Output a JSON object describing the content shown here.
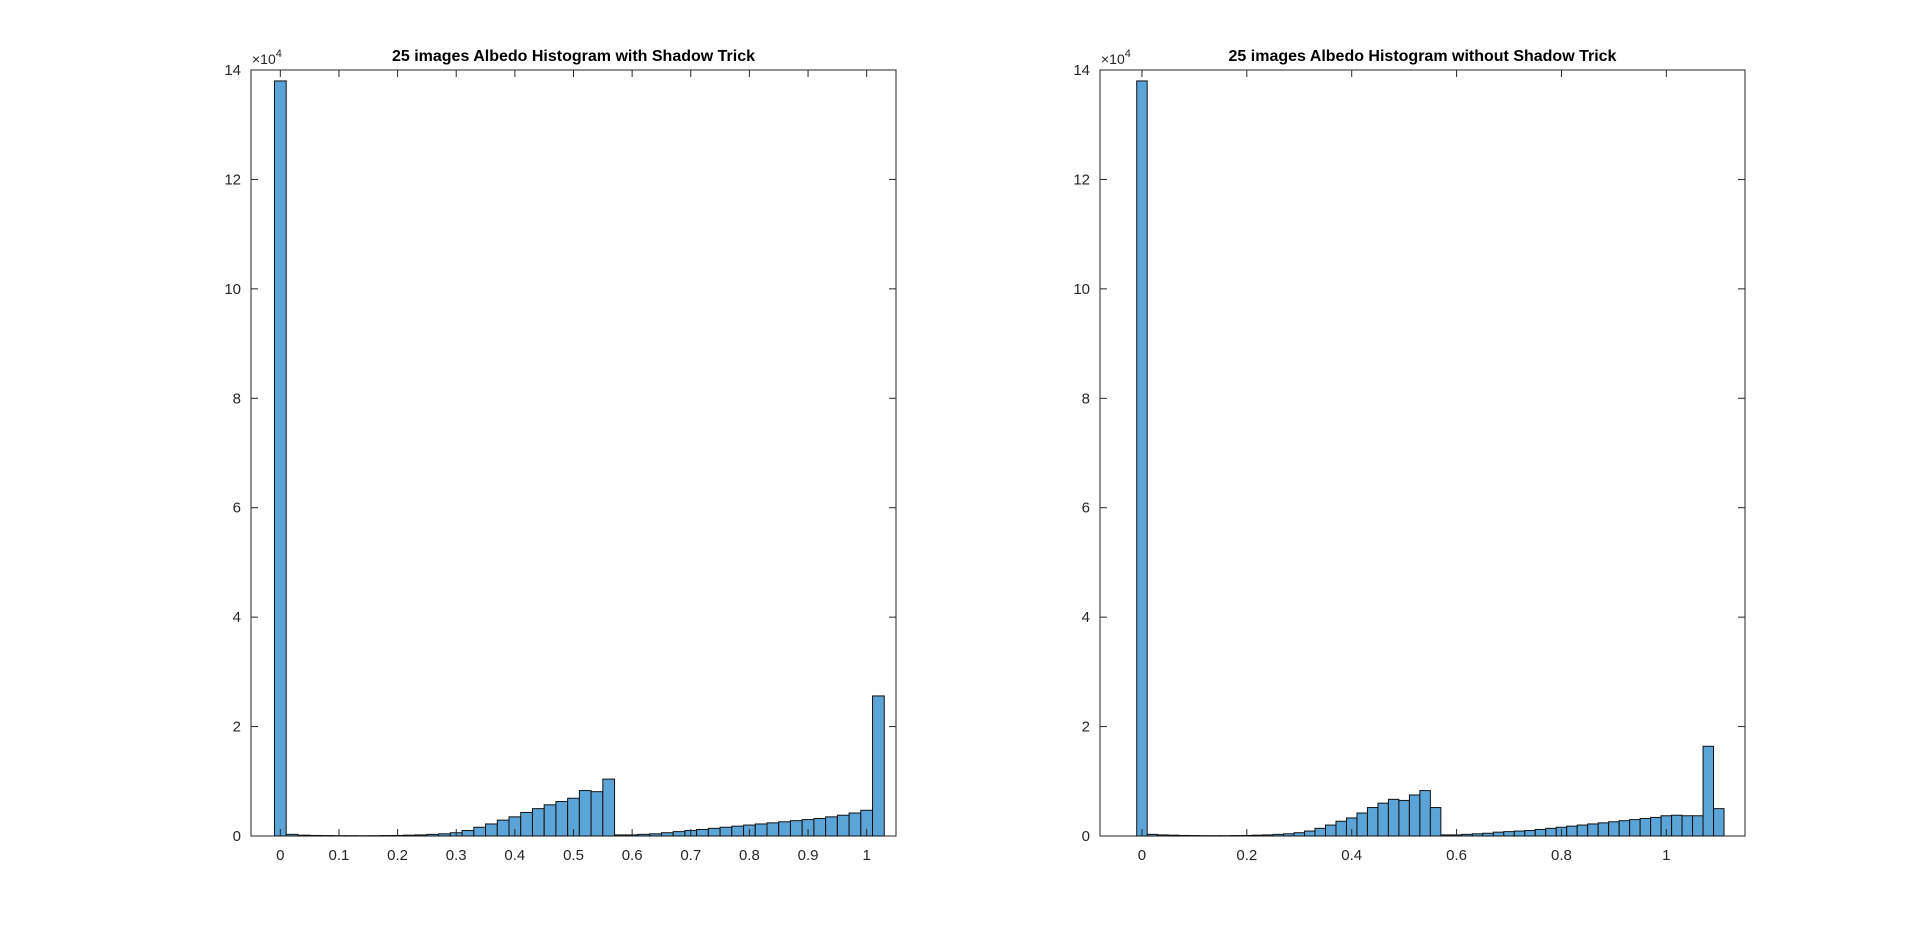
{
  "figure": {
    "background": "#ffffff",
    "bar_color": "#5ba4d8",
    "bar_edge_color": "#111111"
  },
  "chart_data": [
    {
      "type": "bar",
      "title": "25 images Albedo Histogram with Shadow Trick",
      "xlabel": "",
      "ylabel": "",
      "xlim": [
        -0.05,
        1.05
      ],
      "ylim": [
        0,
        140000
      ],
      "y_exponent_label": "×10",
      "y_exponent_power": "4",
      "xticks": [
        {
          "value": 0,
          "label": "0"
        },
        {
          "value": 0.1,
          "label": "0.1"
        },
        {
          "value": 0.2,
          "label": "0.2"
        },
        {
          "value": 0.3,
          "label": "0.3"
        },
        {
          "value": 0.4,
          "label": "0.4"
        },
        {
          "value": 0.5,
          "label": "0.5"
        },
        {
          "value": 0.6,
          "label": "0.6"
        },
        {
          "value": 0.7,
          "label": "0.7"
        },
        {
          "value": 0.8,
          "label": "0.8"
        },
        {
          "value": 0.9,
          "label": "0.9"
        },
        {
          "value": 1,
          "label": "1"
        }
      ],
      "yticks": [
        {
          "value": 0,
          "label": "0"
        },
        {
          "value": 20000,
          "label": "2"
        },
        {
          "value": 40000,
          "label": "4"
        },
        {
          "value": 60000,
          "label": "6"
        },
        {
          "value": 80000,
          "label": "8"
        },
        {
          "value": 100000,
          "label": "10"
        },
        {
          "value": 120000,
          "label": "12"
        },
        {
          "value": 140000,
          "label": "14"
        }
      ],
      "bin_start": -0.01,
      "bin_width": 0.02,
      "values": [
        138000,
        300,
        150,
        100,
        80,
        60,
        60,
        50,
        60,
        80,
        100,
        150,
        200,
        300,
        400,
        600,
        1000,
        1600,
        2200,
        2900,
        3500,
        4300,
        5000,
        5700,
        6300,
        6900,
        8300,
        8100,
        10400,
        200,
        200,
        300,
        400,
        600,
        800,
        1000,
        1200,
        1400,
        1600,
        1800,
        2000,
        2200,
        2400,
        2600,
        2800,
        3000,
        3200,
        3500,
        3800,
        4200,
        4700,
        25600
      ]
    },
    {
      "type": "bar",
      "title": "25 images Albedo Histogram without Shadow Trick",
      "xlabel": "",
      "ylabel": "",
      "xlim": [
        -0.08,
        1.15
      ],
      "ylim": [
        0,
        140000
      ],
      "y_exponent_label": "×10",
      "y_exponent_power": "4",
      "xticks": [
        {
          "value": 0,
          "label": "0"
        },
        {
          "value": 0.2,
          "label": "0.2"
        },
        {
          "value": 0.4,
          "label": "0.4"
        },
        {
          "value": 0.6,
          "label": "0.6"
        },
        {
          "value": 0.8,
          "label": "0.8"
        },
        {
          "value": 1,
          "label": "1"
        }
      ],
      "yticks": [
        {
          "value": 0,
          "label": "0"
        },
        {
          "value": 20000,
          "label": "2"
        },
        {
          "value": 40000,
          "label": "4"
        },
        {
          "value": 60000,
          "label": "6"
        },
        {
          "value": 80000,
          "label": "8"
        },
        {
          "value": 100000,
          "label": "10"
        },
        {
          "value": 120000,
          "label": "12"
        },
        {
          "value": 140000,
          "label": "14"
        }
      ],
      "bin_start": -0.01,
      "bin_width": 0.02,
      "values": [
        138000,
        300,
        200,
        150,
        100,
        80,
        60,
        60,
        60,
        80,
        100,
        150,
        200,
        300,
        400,
        600,
        900,
        1400,
        2000,
        2700,
        3300,
        4200,
        5200,
        6000,
        6700,
        6500,
        7500,
        8300,
        5200,
        200,
        200,
        300,
        400,
        500,
        700,
        800,
        900,
        1000,
        1200,
        1400,
        1600,
        1800,
        2000,
        2200,
        2400,
        2600,
        2800,
        3000,
        3200,
        3400,
        3700,
        3800,
        3700,
        3700,
        16400,
        5000
      ]
    }
  ]
}
